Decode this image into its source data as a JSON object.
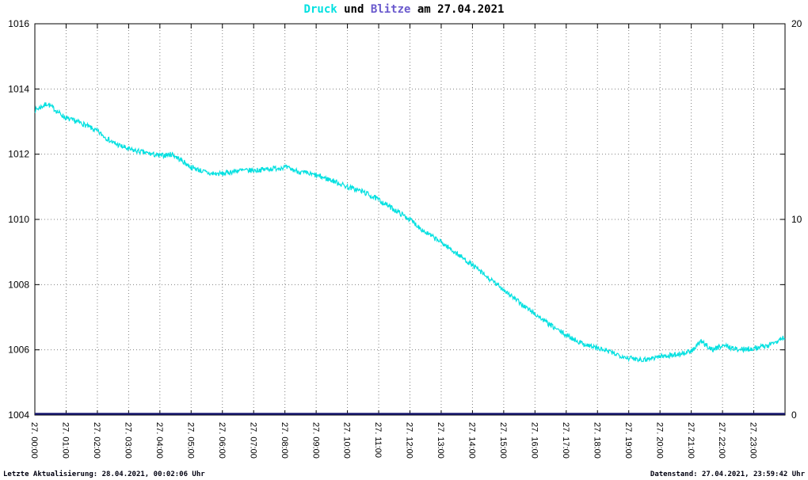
{
  "page": {
    "background": "#ffffff"
  },
  "title": {
    "druck": "Druck",
    "und": " und ",
    "blitze": "Blitze",
    "date_suffix": " am 27.04.2021",
    "druck_color": "#00e0e0",
    "blitze_color": "#6a5acd",
    "text_color": "#000000"
  },
  "footer": {
    "last_update": "Letzte Aktualisierung: 28.04.2021, 00:02:06 Uhr",
    "data_state": "Datenstand: 27.04.2021, 23:59:42 Uhr"
  },
  "chart_data": {
    "type": "line",
    "title": "Druck und Blitze am 27.04.2021",
    "grid": true,
    "legend": "none",
    "x_axis": {
      "hours": 24,
      "tick_labels": [
        "27. 00:00",
        "27. 01:00",
        "27. 02:00",
        "27. 03:00",
        "27. 04:00",
        "27. 05:00",
        "27. 06:00",
        "27. 07:00",
        "27. 08:00",
        "27. 09:00",
        "27. 10:00",
        "27. 11:00",
        "27. 12:00",
        "27. 13:00",
        "27. 14:00",
        "27. 15:00",
        "27. 16:00",
        "27. 17:00",
        "27. 18:00",
        "27. 19:00",
        "27. 20:00",
        "27. 21:00",
        "27. 22:00",
        "27. 23:00"
      ]
    },
    "y_left": {
      "min": 1004,
      "max": 1016,
      "ticks": [
        1004,
        1006,
        1008,
        1010,
        1012,
        1014,
        1016
      ]
    },
    "y_right": {
      "min": 0,
      "max": 20,
      "ticks": [
        0,
        10,
        20
      ]
    },
    "series": [
      {
        "name": "Druck",
        "axis": "left",
        "color": "#00e0e0",
        "noise_amplitude": 0.16,
        "samples_per_hour": 60,
        "anchors": [
          [
            0,
            1013.35
          ],
          [
            0.4,
            1013.55
          ],
          [
            1,
            1013.1
          ],
          [
            1.5,
            1012.95
          ],
          [
            2,
            1012.7
          ],
          [
            2.5,
            1012.35
          ],
          [
            3,
            1012.15
          ],
          [
            3.5,
            1012.05
          ],
          [
            4,
            1011.95
          ],
          [
            4.4,
            1012.0
          ],
          [
            5,
            1011.6
          ],
          [
            5.6,
            1011.4
          ],
          [
            6,
            1011.4
          ],
          [
            6.5,
            1011.5
          ],
          [
            7,
            1011.5
          ],
          [
            7.5,
            1011.55
          ],
          [
            8,
            1011.6
          ],
          [
            8.5,
            1011.45
          ],
          [
            9,
            1011.35
          ],
          [
            9.5,
            1011.2
          ],
          [
            10,
            1011.0
          ],
          [
            10.5,
            1010.85
          ],
          [
            11,
            1010.6
          ],
          [
            11.5,
            1010.3
          ],
          [
            12,
            1010.0
          ],
          [
            12.5,
            1009.6
          ],
          [
            13,
            1009.3
          ],
          [
            13.5,
            1008.95
          ],
          [
            14,
            1008.6
          ],
          [
            14.5,
            1008.2
          ],
          [
            15,
            1007.85
          ],
          [
            15.5,
            1007.45
          ],
          [
            16,
            1007.1
          ],
          [
            16.5,
            1006.75
          ],
          [
            17,
            1006.45
          ],
          [
            17.5,
            1006.2
          ],
          [
            18,
            1006.05
          ],
          [
            18.5,
            1005.9
          ],
          [
            19,
            1005.75
          ],
          [
            19.5,
            1005.7
          ],
          [
            20,
            1005.8
          ],
          [
            20.5,
            1005.85
          ],
          [
            21,
            1005.95
          ],
          [
            21.3,
            1006.25
          ],
          [
            21.7,
            1006.0
          ],
          [
            22,
            1006.15
          ],
          [
            22.5,
            1006.0
          ],
          [
            23,
            1006.05
          ],
          [
            23.5,
            1006.15
          ],
          [
            24,
            1006.4
          ]
        ]
      },
      {
        "name": "Blitze",
        "axis": "right",
        "color": "#191970",
        "constant_value": 0
      }
    ]
  }
}
